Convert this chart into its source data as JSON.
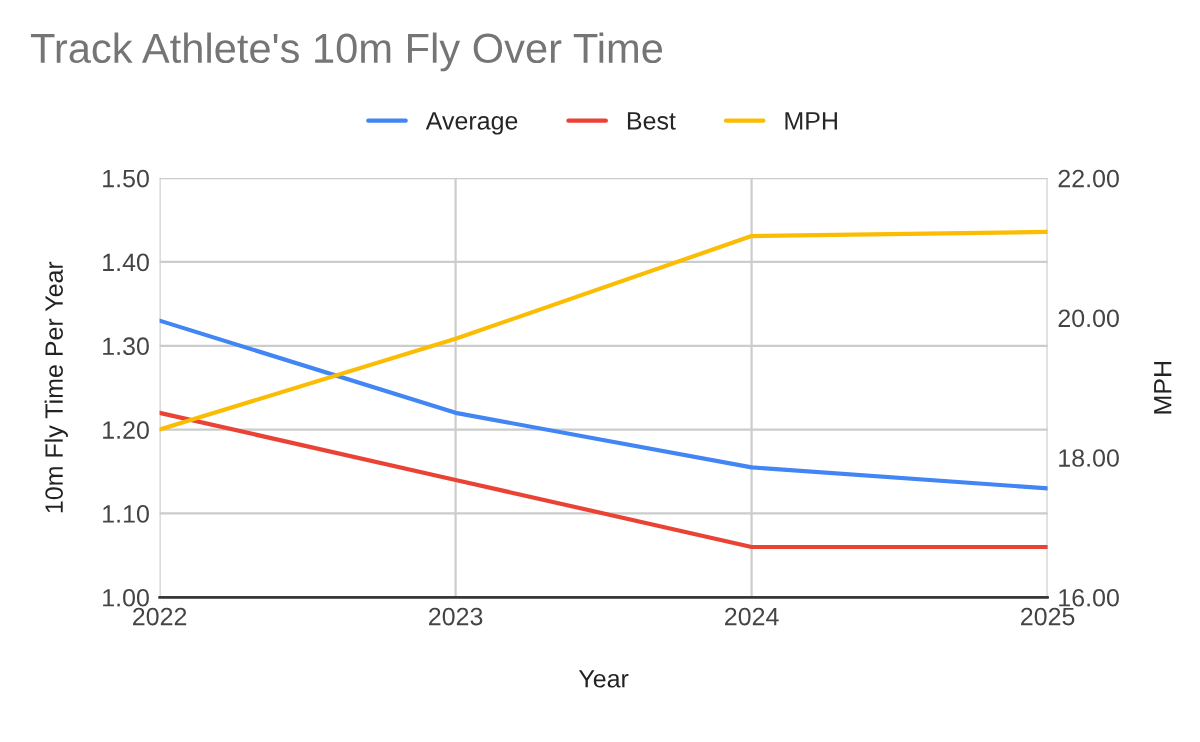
{
  "chart_data": {
    "type": "line",
    "title": "Track Athlete's 10m Fly Over Time",
    "xlabel": "Year",
    "ylabel": "10m Fly Time Per Year",
    "y2label": "MPH",
    "x": [
      2022,
      2023,
      2024,
      2025
    ],
    "series": [
      {
        "name": "Average",
        "color": "#4285f4",
        "values": [
          1.33,
          1.22,
          1.155,
          1.13
        ]
      },
      {
        "name": "Best",
        "color": "#ea4335",
        "values": [
          1.22,
          1.14,
          1.06,
          1.06
        ]
      },
      {
        "name": "MPH",
        "color": "#fbbc04",
        "values": [
          18.4,
          19.7,
          21.17,
          21.23
        ],
        "axis": "y2"
      }
    ],
    "xlim": [
      2022,
      2025
    ],
    "xticks": [
      2022,
      2023,
      2024,
      2025
    ],
    "ylim": [
      1.0,
      1.5
    ],
    "yticks": [
      {
        "value": 1.0,
        "label": "1.00"
      },
      {
        "value": 1.1,
        "label": "1.10"
      },
      {
        "value": 1.2,
        "label": "1.20"
      },
      {
        "value": 1.3,
        "label": "1.30"
      },
      {
        "value": 1.4,
        "label": "1.40"
      },
      {
        "value": 1.5,
        "label": "1.50"
      }
    ],
    "y2lim": [
      16,
      22
    ],
    "y2ticks": [
      {
        "value": 16,
        "label": "16.00"
      },
      {
        "value": 18,
        "label": "18.00"
      },
      {
        "value": 20,
        "label": "20.00"
      },
      {
        "value": 22,
        "label": "22.00"
      }
    ],
    "grid": true,
    "legend": "top"
  }
}
